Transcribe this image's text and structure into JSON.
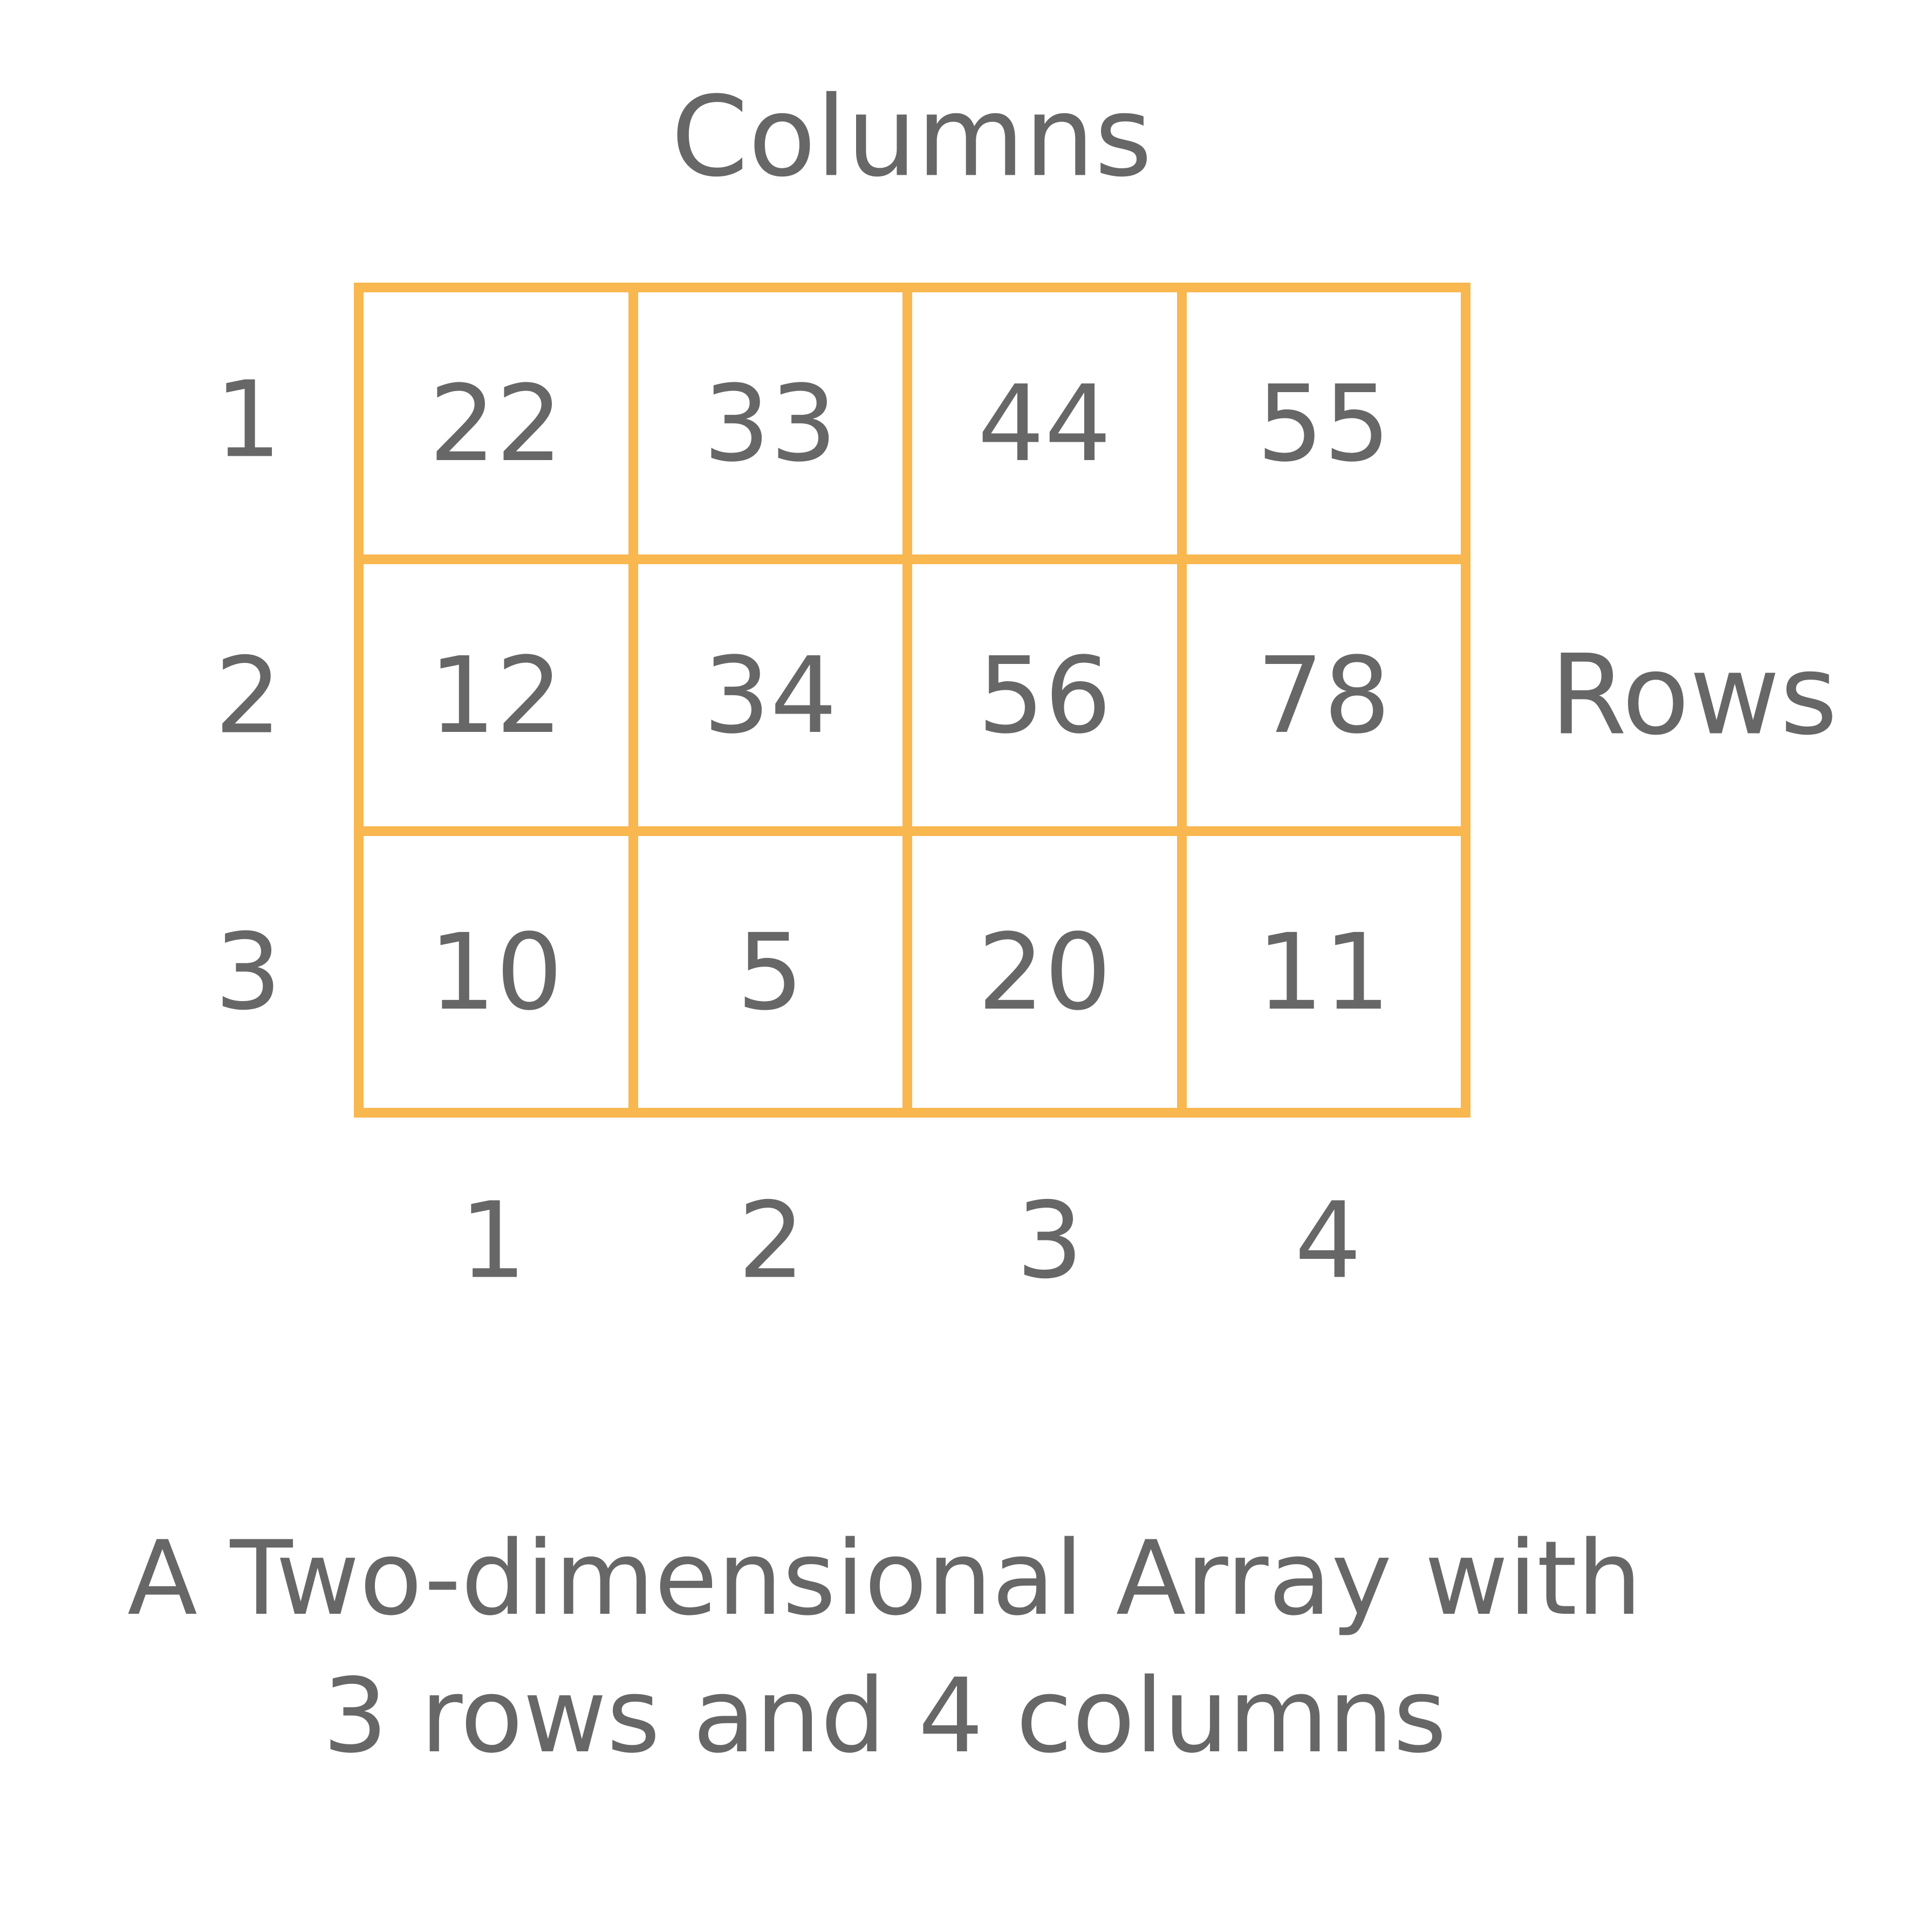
{
  "columns_title": "Columns",
  "rows_title": "Rows",
  "row_indices": [
    "1",
    "2",
    "3"
  ],
  "column_indices": [
    "1",
    "2",
    "3",
    "4"
  ],
  "cells": [
    [
      "22",
      "33",
      "44",
      "55"
    ],
    [
      "12",
      "34",
      "56",
      "78"
    ],
    [
      "10",
      "5",
      "20",
      "11"
    ]
  ],
  "caption": {
    "line1": "A Two-dimensional Array with",
    "line2": "3 rows and 4 columns"
  },
  "colors": {
    "grid_border": "#f8b74f",
    "text": "#676767",
    "background": "#ffffff"
  }
}
